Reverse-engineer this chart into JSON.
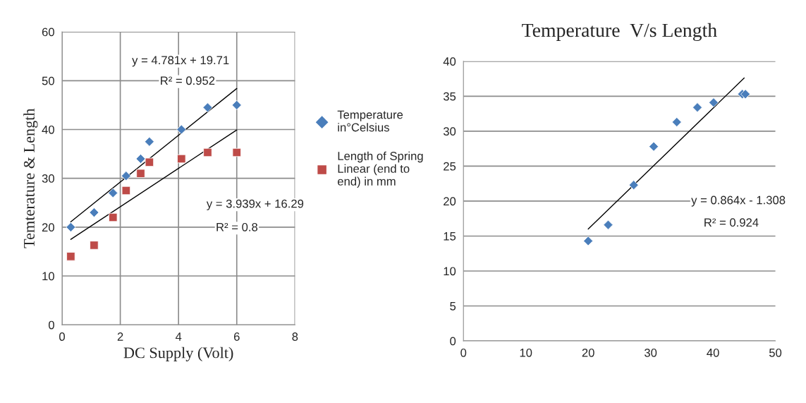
{
  "chart_data": [
    {
      "type": "scatter",
      "xlabel": "DC Supply (Volt)",
      "ylabel": "Temterature & Length",
      "xlim": [
        0,
        8
      ],
      "ylim": [
        0,
        60
      ],
      "xticks": [
        0,
        2,
        4,
        6,
        8
      ],
      "yticks": [
        0,
        10,
        20,
        30,
        40,
        50,
        60
      ],
      "grid": true,
      "legend": "right",
      "series": [
        {
          "name": "Temperature in°Celsius",
          "color": "#4a7ebb",
          "marker": "diamond",
          "x": [
            0.3,
            1.1,
            1.75,
            2.2,
            2.7,
            3.0,
            4.1,
            5.0,
            6.0
          ],
          "values": [
            20,
            23,
            27,
            30.5,
            34,
            37.5,
            40,
            44.5,
            45
          ]
        },
        {
          "name": "Length of Spring Linear (end to end) in mm",
          "color": "#be4b48",
          "marker": "square",
          "x": [
            0.3,
            1.1,
            1.75,
            2.2,
            2.7,
            3.0,
            4.1,
            5.0,
            6.0
          ],
          "values": [
            14,
            16.3,
            22,
            27.5,
            31,
            33.3,
            34,
            35.3,
            35.3
          ]
        },
        {
          "type": "line",
          "color": "#000000",
          "x": [
            0.3,
            6.0
          ],
          "values": [
            21.1,
            48.4
          ]
        },
        {
          "type": "line",
          "color": "#000000",
          "x": [
            0.3,
            6.0
          ],
          "values": [
            17.5,
            39.9
          ]
        }
      ],
      "annotations": [
        "y = 4.781x + 19.71",
        "R² = 0.952",
        "y = 3.939x + 16.29",
        "R² = 0.8"
      ]
    },
    {
      "type": "scatter",
      "title": "Temperature  V/s Length",
      "xlim": [
        0,
        50
      ],
      "ylim": [
        0,
        40
      ],
      "xticks": [
        0,
        10,
        20,
        30,
        40,
        50
      ],
      "yticks": [
        0,
        5,
        10,
        15,
        20,
        25,
        30,
        35,
        40
      ],
      "grid": "y",
      "series": [
        {
          "color": "#4a7ebb",
          "marker": "diamond",
          "x": [
            20,
            23.2,
            27.3,
            30.5,
            34.2,
            37.5,
            40.1,
            44.7,
            45.2
          ],
          "values": [
            14.3,
            16.6,
            22.3,
            27.8,
            31.3,
            33.4,
            34.1,
            35.3,
            35.3
          ]
        },
        {
          "type": "line",
          "color": "#000000",
          "x": [
            20,
            45
          ],
          "values": [
            16.0,
            37.6
          ]
        }
      ],
      "annotations": [
        "y = 0.864x - 1.308",
        "R² = 0.924"
      ]
    }
  ]
}
